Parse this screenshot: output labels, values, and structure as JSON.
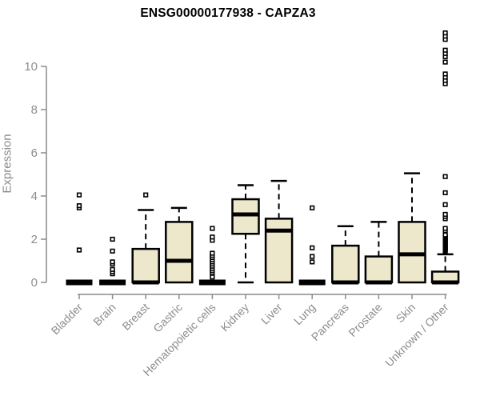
{
  "chart_data": {
    "type": "boxplot",
    "title": "ENSG00000177938 - CAPZA3",
    "ylabel": "Expression",
    "xlabel": "",
    "ylim": [
      0,
      11.7
    ],
    "yticks": [
      0,
      2,
      4,
      6,
      8,
      10
    ],
    "grid": false,
    "legend": "none",
    "categories": [
      "Bladder",
      "Brain",
      "Breast",
      "Gastric",
      "Hematopoietic cells",
      "Kidney",
      "Liver",
      "Lung",
      "Pancreas",
      "Prostate",
      "Skin",
      "Unknown / Other"
    ],
    "boxes": [
      {
        "category": "Bladder",
        "q1": 0,
        "median": 0,
        "q3": 0,
        "whisker_low": 0,
        "whisker_high": 0,
        "outliers": [
          1.5,
          3.45,
          3.55,
          4.05
        ]
      },
      {
        "category": "Brain",
        "q1": 0,
        "median": 0,
        "q3": 0,
        "whisker_low": 0,
        "whisker_high": 0,
        "outliers": [
          0.4,
          0.5,
          0.6,
          0.85,
          0.95,
          1.45,
          2.0
        ]
      },
      {
        "category": "Breast",
        "q1": 0,
        "median": 0,
        "q3": 1.55,
        "whisker_low": 0,
        "whisker_high": 3.35,
        "outliers": [
          4.05
        ]
      },
      {
        "category": "Gastric",
        "q1": 0,
        "median": 1.0,
        "q3": 2.8,
        "whisker_low": 0,
        "whisker_high": 3.45,
        "outliers": []
      },
      {
        "category": "Hematopoietic cells",
        "q1": 0,
        "median": 0,
        "q3": 0,
        "whisker_low": 0,
        "whisker_high": 0,
        "outliers": [
          0.25,
          0.45,
          0.55,
          0.65,
          0.75,
          0.85,
          0.95,
          1.05,
          1.15,
          1.25,
          1.35,
          1.95,
          2.1,
          2.5
        ]
      },
      {
        "category": "Kidney",
        "q1": 2.25,
        "median": 3.15,
        "q3": 3.85,
        "whisker_low": 0,
        "whisker_high": 4.5,
        "outliers": []
      },
      {
        "category": "Liver",
        "q1": 0,
        "median": 2.4,
        "q3": 2.95,
        "whisker_low": 0,
        "whisker_high": 4.7,
        "outliers": []
      },
      {
        "category": "Lung",
        "q1": 0,
        "median": 0,
        "q3": 0,
        "whisker_low": 0,
        "whisker_high": 0,
        "outliers": [
          0.95,
          1.2,
          1.6,
          3.45
        ]
      },
      {
        "category": "Pancreas",
        "q1": 0,
        "median": 0,
        "q3": 1.7,
        "whisker_low": 0,
        "whisker_high": 2.6,
        "outliers": []
      },
      {
        "category": "Prostate",
        "q1": 0,
        "median": 0,
        "q3": 1.2,
        "whisker_low": 0,
        "whisker_high": 2.8,
        "outliers": []
      },
      {
        "category": "Skin",
        "q1": 0,
        "median": 1.3,
        "q3": 2.8,
        "whisker_low": 0,
        "whisker_high": 5.05,
        "outliers": []
      },
      {
        "category": "Unknown / Other",
        "q1": 0,
        "median": 0,
        "q3": 0.5,
        "whisker_low": 0,
        "whisker_high": 1.3,
        "outliers": [
          1.45,
          1.5,
          1.55,
          1.6,
          1.65,
          1.7,
          1.75,
          1.8,
          1.85,
          1.9,
          1.95,
          2.0,
          2.05,
          2.1,
          2.15,
          2.2,
          2.4,
          2.5,
          2.95,
          3.05,
          3.15,
          3.6,
          4.15,
          4.9,
          9.2,
          9.35,
          9.5,
          9.65,
          10.2,
          10.45,
          10.6,
          10.75,
          11.25,
          11.4,
          11.55
        ]
      }
    ],
    "colors": {
      "box_fill": "#EDE7CC",
      "box_border": "#000000",
      "median": "#000000",
      "outlier_stroke": "#000000",
      "outlier_fill": "#ffffff",
      "axis": "#8c8c8c",
      "tick_text": "#8c8c8c",
      "title_text": "#000000",
      "background": "#ffffff"
    }
  }
}
